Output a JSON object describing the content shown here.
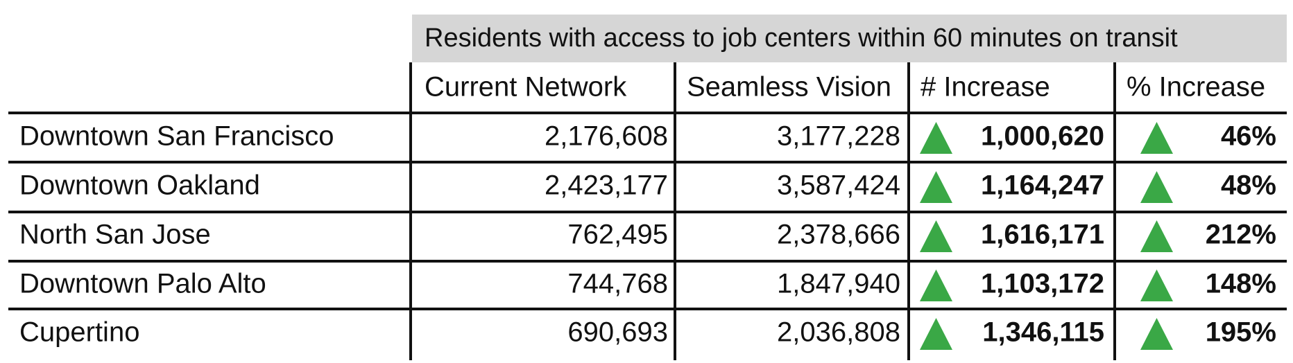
{
  "header": {
    "title": "Residents with access to job centers within 60 minutes on transit",
    "columns": [
      "Current Network",
      "Seamless Vision",
      "# Increase",
      "% Increase"
    ]
  },
  "table": {
    "rows": [
      [
        "Downtown San Francisco",
        "2,176,608",
        "3,177,228",
        "1,000,620",
        "46%"
      ],
      [
        "Downtown Oakland",
        "2,423,177",
        "3,587,424",
        "1,164,247",
        "48%"
      ],
      [
        "North San Jose",
        "762,495",
        "2,378,666",
        "1,616,171",
        "212%"
      ],
      [
        "Downtown Palo Alto",
        "744,768",
        "1,847,940",
        "1,103,172",
        "148%"
      ],
      [
        "Cupertino",
        "690,693",
        "2,036,808",
        "1,346,115",
        "195%"
      ]
    ]
  }
}
